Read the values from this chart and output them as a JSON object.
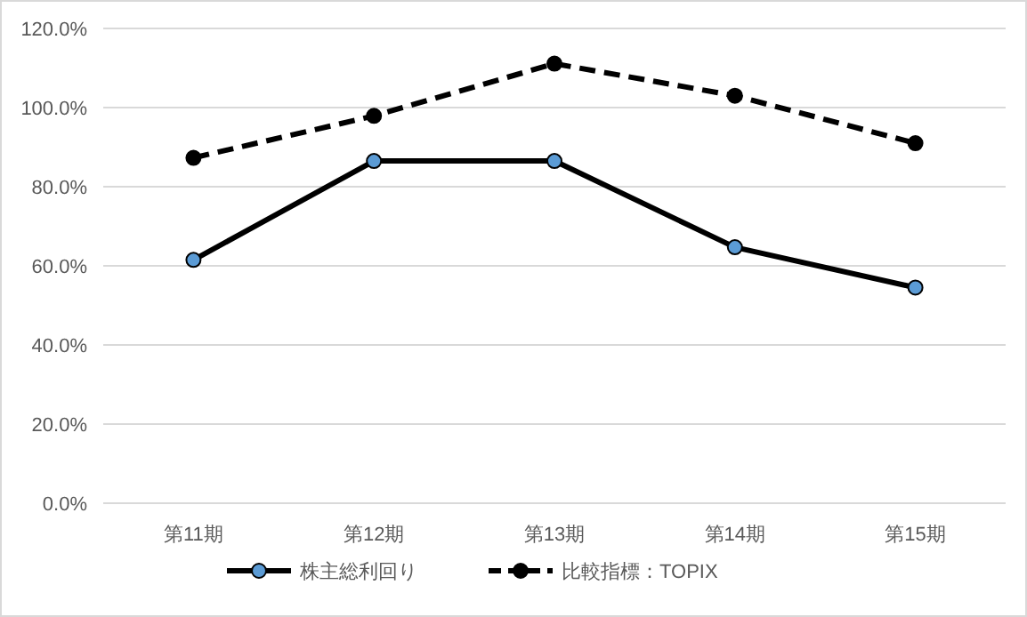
{
  "chart_data": {
    "type": "line",
    "categories": [
      "第11期",
      "第12期",
      "第13期",
      "第14期",
      "第15期"
    ],
    "series": [
      {
        "name": "株主総利回り",
        "color": "#000000",
        "colors": [
          "#5b9bd5",
          "#5b9bd5",
          "#5b9bd5",
          "#5b9bd5",
          "#5b9bd5"
        ],
        "marker": "circle",
        "line_style": "solid",
        "values": [
          61.5,
          86.5,
          86.5,
          64.7,
          54.5
        ]
      },
      {
        "name": "比較指標：TOPIX",
        "color": "#000000",
        "colors": [
          "#000000",
          "#000000",
          "#000000",
          "#000000",
          "#000000"
        ],
        "marker": "circle",
        "line_style": "dashed",
        "values": [
          87.3,
          97.9,
          111.1,
          103.0,
          91.0
        ]
      }
    ],
    "ylim": [
      0,
      120
    ],
    "yticks": [
      {
        "value": 0,
        "label": "0.0%"
      },
      {
        "value": 20,
        "label": "20.0%"
      },
      {
        "value": 40,
        "label": "40.0%"
      },
      {
        "value": 60,
        "label": "60.0%"
      },
      {
        "value": 80,
        "label": "80.0%"
      },
      {
        "value": 100,
        "label": "100.0%"
      },
      {
        "value": 120,
        "label": "120.0%"
      }
    ],
    "grid": "y",
    "legend": "bottom"
  }
}
